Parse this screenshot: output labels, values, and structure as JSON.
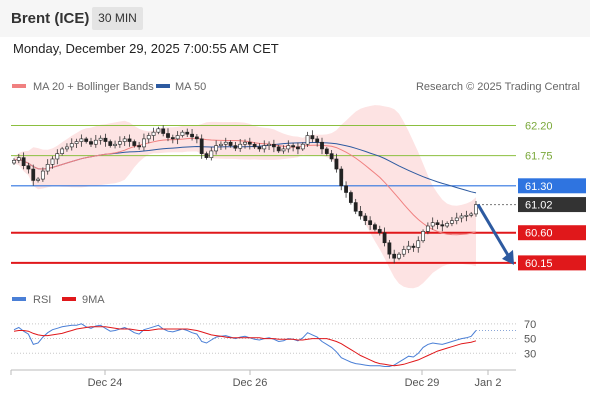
{
  "header": {
    "title": "Brent (ICE)",
    "interval": "30 MIN",
    "datetime": "Monday, December 29, 2025 7:00:55 AM CET"
  },
  "legend": {
    "ma20": "MA 20 + Bollinger Bands",
    "ma50": "MA 50",
    "source": "Research © 2025 Trading Central",
    "rsi": "RSI",
    "ma9": "9MA"
  },
  "colors": {
    "ma20": "#f08080",
    "ma50": "#2d5aa0",
    "bollinger_fill": "#fde3e3",
    "green_level": "#8bbf3f",
    "blue_level": "#2f74e0",
    "red_level": "#e0181b",
    "current_price": "#333333",
    "forecast_arrow": "#2d5aa0",
    "rsi": "#4a7fd6",
    "rsi_ma": "#e0181b"
  },
  "chart_data": [
    {
      "type": "candlestick",
      "x_ticks": [
        "Dec 24",
        "Dec 26",
        "Dec 29",
        "Jan 2"
      ],
      "levels": [
        {
          "value": 62.2,
          "label": "62.20",
          "kind": "resistance"
        },
        {
          "value": 61.75,
          "label": "61.75",
          "kind": "resistance"
        },
        {
          "value": 61.3,
          "label": "61.30",
          "kind": "pivot"
        },
        {
          "value": 61.02,
          "label": "61.02",
          "kind": "current"
        },
        {
          "value": 60.6,
          "label": "60.60",
          "kind": "support"
        },
        {
          "value": 60.15,
          "label": "60.15",
          "kind": "support"
        }
      ],
      "ylim": [
        59.85,
        62.55
      ],
      "close": [
        61.68,
        61.72,
        61.6,
        61.55,
        61.38,
        61.4,
        61.52,
        61.62,
        61.7,
        61.78,
        61.85,
        61.88,
        61.93,
        61.96,
        62.0,
        61.96,
        61.92,
        61.98,
        62.01,
        61.96,
        61.9,
        61.92,
        61.96,
        62.0,
        61.96,
        61.9,
        61.88,
        62.0,
        62.05,
        62.1,
        62.15,
        62.08,
        62.02,
        62.0,
        62.05,
        62.1,
        62.07,
        62.03,
        62.0,
        61.78,
        61.72,
        61.82,
        61.9,
        61.92,
        61.95,
        61.9,
        61.86,
        61.92,
        61.95,
        61.92,
        61.88,
        61.85,
        61.9,
        61.92,
        61.88,
        61.82,
        61.85,
        61.9,
        61.88,
        61.85,
        61.92,
        62.05,
        62.0,
        61.95,
        61.85,
        61.78,
        61.7,
        61.55,
        61.3,
        61.2,
        61.05,
        60.92,
        60.85,
        60.78,
        60.72,
        60.65,
        60.6,
        60.45,
        60.28,
        60.22,
        60.28,
        60.35,
        60.4,
        60.38,
        60.48,
        60.62,
        60.7,
        60.75,
        60.72,
        60.7,
        60.74,
        60.78,
        60.82,
        60.85,
        60.86,
        60.88,
        61.02
      ],
      "forecast": {
        "from": 61.02,
        "to": 60.15
      }
    },
    {
      "type": "line",
      "name": "RSI",
      "y_ticks": [
        70,
        50,
        30
      ],
      "ylim": [
        10,
        82
      ],
      "values": [
        62,
        65,
        60,
        56,
        42,
        44,
        52,
        58,
        62,
        64,
        66,
        67,
        68,
        68,
        70,
        66,
        64,
        67,
        68,
        64,
        60,
        61,
        63,
        65,
        62,
        58,
        56,
        62,
        64,
        66,
        68,
        63,
        60,
        59,
        61,
        63,
        61,
        58,
        56,
        46,
        44,
        48,
        52,
        53,
        54,
        52,
        50,
        52,
        53,
        51,
        49,
        48,
        50,
        51,
        49,
        46,
        47,
        50,
        49,
        47,
        51,
        58,
        55,
        52,
        46,
        42,
        38,
        32,
        24,
        21,
        18,
        16,
        15,
        14,
        13,
        13,
        13,
        12,
        12,
        14,
        18,
        22,
        26,
        25,
        30,
        38,
        42,
        44,
        43,
        42,
        44,
        46,
        48,
        50,
        51,
        53,
        61
      ],
      "ma": [
        60,
        61,
        61,
        60,
        57,
        55,
        54,
        54,
        55,
        56,
        57,
        59,
        61,
        63,
        64,
        65,
        66,
        66,
        66,
        66,
        65,
        64,
        63,
        63,
        63,
        62,
        61,
        61,
        61,
        62,
        63,
        63,
        63,
        63,
        63,
        63,
        63,
        62,
        61,
        59,
        57,
        55,
        54,
        53,
        52,
        51,
        51,
        51,
        51,
        51,
        51,
        51,
        50,
        50,
        50,
        49,
        49,
        49,
        49,
        48,
        48,
        49,
        50,
        50,
        50,
        50,
        48,
        46,
        43,
        39,
        35,
        31,
        27,
        24,
        21,
        18,
        16,
        15,
        14,
        13,
        14,
        15,
        17,
        19,
        21,
        24,
        27,
        30,
        33,
        35,
        37,
        39,
        41,
        43,
        44,
        45,
        47
      ]
    }
  ]
}
